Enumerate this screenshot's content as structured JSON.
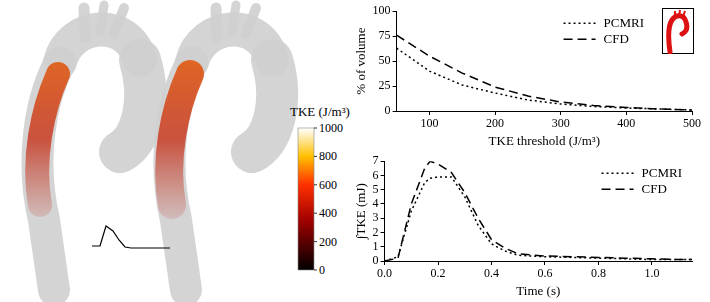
{
  "chart_data": [
    {
      "type": "line",
      "x_label": "TKE threshold (J/m³)",
      "y_label": "% of volume",
      "x": [
        50,
        100,
        150,
        200,
        250,
        300,
        350,
        400,
        450,
        500
      ],
      "series": [
        {
          "name": "PCMRI",
          "color": "#000000",
          "line_style": "dotted",
          "values": [
            63,
            40,
            26,
            18,
            11,
            7,
            4.5,
            3,
            2,
            1
          ]
        },
        {
          "name": "CFD",
          "color": "#000000",
          "line_style": "dashed",
          "values": [
            76,
            55,
            38,
            24,
            15,
            9,
            5.5,
            3.5,
            2,
            1
          ]
        }
      ],
      "xlim": [
        50,
        500
      ],
      "xticks": [
        100,
        200,
        300,
        400,
        500
      ],
      "ylim": [
        0,
        100
      ],
      "yticks": [
        0,
        25,
        50,
        75,
        100
      ],
      "grid": false,
      "legend": "top right"
    },
    {
      "type": "line",
      "x_label": "Time (s)",
      "y_label": "∫TKE (mJ)",
      "x": [
        0,
        0.05,
        0.1,
        0.15,
        0.17,
        0.2,
        0.25,
        0.3,
        0.35,
        0.4,
        0.45,
        0.5,
        0.6,
        0.7,
        0.8,
        0.9,
        1.0,
        1.1,
        1.15
      ],
      "series": [
        {
          "name": "PCMRI",
          "color": "#000000",
          "line_style": "dotted",
          "values": [
            0,
            0.3,
            3.5,
            5.5,
            5.8,
            5.9,
            5.9,
            4.5,
            2.5,
            1.2,
            0.7,
            0.4,
            0.3,
            0.25,
            0.2,
            0.15,
            0.1,
            0.1,
            0.1
          ]
        },
        {
          "name": "CFD",
          "color": "#000000",
          "line_style": "dashed",
          "values": [
            0,
            0.2,
            4.0,
            6.5,
            7.0,
            6.8,
            6.2,
            4.8,
            3.0,
            1.5,
            0.9,
            0.5,
            0.35,
            0.3,
            0.25,
            0.2,
            0.15,
            0.1,
            0.1
          ]
        }
      ],
      "xlim": [
        0,
        1.15
      ],
      "xticks": [
        {
          "value": 0,
          "label": "0.0"
        },
        0.2,
        0.4,
        0.6,
        0.8,
        {
          "value": 1,
          "label": "1.0"
        }
      ],
      "ylim": [
        0,
        7
      ],
      "yticks": [
        0,
        1,
        2,
        3,
        4,
        5,
        6,
        7
      ],
      "grid": false,
      "legend": "top right"
    }
  ],
  "colorbar": {
    "title": "TKE (J/m³)",
    "range": [
      0,
      1000
    ],
    "ticks": [
      0,
      200,
      400,
      600,
      800,
      1000
    ]
  }
}
